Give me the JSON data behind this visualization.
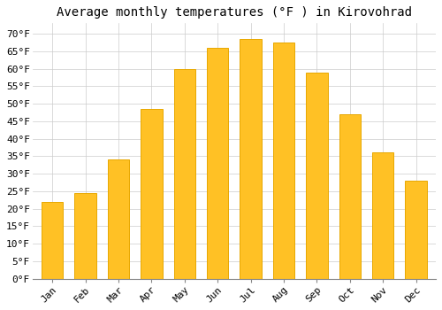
{
  "title": "Average monthly temperatures (°F ) in Kirovohrad",
  "months": [
    "Jan",
    "Feb",
    "Mar",
    "Apr",
    "May",
    "Jun",
    "Jul",
    "Aug",
    "Sep",
    "Oct",
    "Nov",
    "Dec"
  ],
  "values": [
    22,
    24.5,
    34,
    48.5,
    60,
    66,
    68.5,
    67.5,
    59,
    47,
    36,
    28
  ],
  "bar_color": "#FFC125",
  "bar_edge_color": "#E8A800",
  "background_color": "#FFFFFF",
  "grid_color": "#CCCCCC",
  "ylim": [
    0,
    73
  ],
  "yticks": [
    0,
    5,
    10,
    15,
    20,
    25,
    30,
    35,
    40,
    45,
    50,
    55,
    60,
    65,
    70
  ],
  "title_fontsize": 10,
  "tick_fontsize": 8,
  "font_family": "monospace",
  "bar_width": 0.65
}
